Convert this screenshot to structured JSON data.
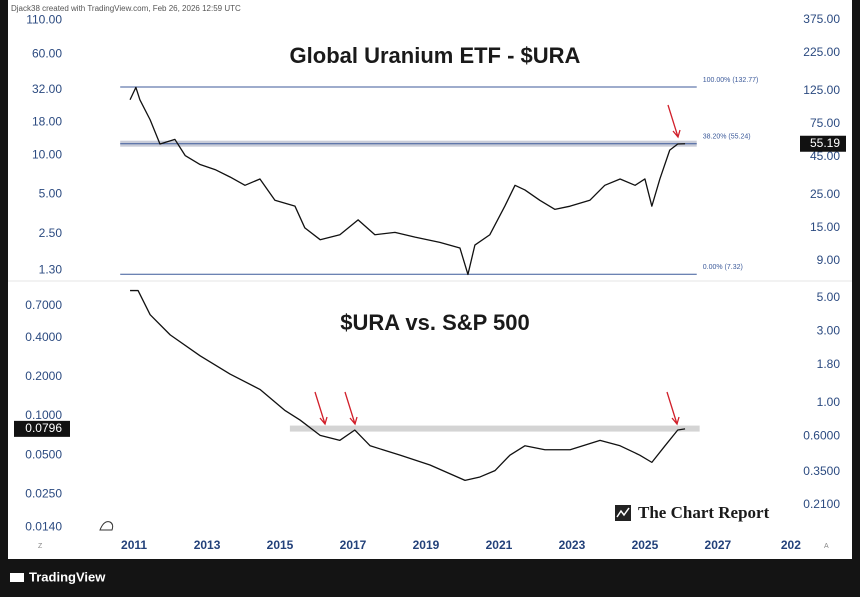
{
  "header": "Djack38 created with TradingView.com, Feb 26, 2026 12:59 UTC",
  "footer": "TradingView",
  "watermark": "The Chart Report",
  "axis_buttons": [
    "Z",
    "A"
  ],
  "chart_data": [
    {
      "type": "line",
      "title": "Global Uranium ETF - $URA",
      "log_scale": true,
      "xlim": [
        2007.6,
        2029.25
      ],
      "x": [
        2010.89,
        2011.05,
        2011.16,
        2011.44,
        2011.71,
        2012.12,
        2012.4,
        2012.81,
        2013.22,
        2013.63,
        2014.04,
        2014.45,
        2014.86,
        2015.41,
        2015.68,
        2016.1,
        2016.64,
        2017.14,
        2017.6,
        2018.15,
        2018.7,
        2019.38,
        2019.93,
        2020.15,
        2020.34,
        2020.75,
        2021.16,
        2021.44,
        2021.71,
        2022.12,
        2022.53,
        2022.95,
        2023.49,
        2023.9,
        2024.32,
        2024.73,
        2025.0,
        2025.19,
        2025.41,
        2025.68,
        2025.9,
        2026.1
      ],
      "series": [
        {
          "color": "#111111",
          "axis": "y2",
          "values": [
            109,
            132,
            109,
            80,
            55,
            59,
            46,
            40,
            37,
            33,
            29,
            32,
            23,
            21,
            15,
            12.5,
            13.5,
            17,
            13.5,
            14,
            13,
            12,
            11,
            7.3,
            11.5,
            13.5,
            21,
            29,
            27,
            23,
            20,
            21,
            23,
            29,
            32,
            29,
            32,
            21,
            32,
            50,
            55,
            55.19
          ]
        }
      ],
      "ylim": [
        1.1,
        127
      ],
      "yticks": [
        {
          "value": 110,
          "label": "110.00"
        },
        {
          "value": 60,
          "label": "60.00"
        },
        {
          "value": 32,
          "label": "32.00"
        },
        {
          "value": 18,
          "label": "18.00"
        },
        {
          "value": 10,
          "label": "10.00"
        },
        {
          "value": 5,
          "label": "5.00"
        },
        {
          "value": 2.5,
          "label": "2.50"
        },
        {
          "value": 1.3,
          "label": "1.30"
        }
      ],
      "y2lim": [
        6.7,
        424
      ],
      "y2ticks": [
        {
          "value": 375,
          "label": "375.00"
        },
        {
          "value": 225,
          "label": "225.00"
        },
        {
          "value": 125,
          "label": "125.00"
        },
        {
          "value": 75,
          "label": "75.00"
        },
        {
          "value": 45,
          "label": "45.00"
        },
        {
          "value": 25,
          "label": "25.00"
        },
        {
          "value": 15,
          "label": "15.00"
        },
        {
          "value": 9,
          "label": "9.00"
        }
      ],
      "fib_x_range": [
        2010.62,
        2026.42
      ],
      "fib_levels": [
        {
          "value": 132.77,
          "label": "100.00% (132.77)",
          "highlight": false
        },
        {
          "value": 55.24,
          "label": "38.20% (55.24)",
          "highlight": true
        },
        {
          "value": 7.32,
          "label": "0.00% (7.32)",
          "highlight": false
        }
      ],
      "last_value": 55.19,
      "last_value_axis": "y2"
    },
    {
      "type": "line",
      "title": "$URA vs. S&P 500",
      "log_scale": true,
      "xlim": [
        2007.6,
        2029.25
      ],
      "xticks": [
        2011,
        2013,
        2015,
        2017,
        2019,
        2021,
        2023,
        2025,
        2027,
        {
          "value": 2029,
          "label": "202"
        }
      ],
      "x": [
        2010.89,
        2011.11,
        2011.44,
        2011.99,
        2012.81,
        2013.63,
        2014.45,
        2015.14,
        2015.55,
        2016.1,
        2016.64,
        2017.05,
        2017.47,
        2018.29,
        2019.11,
        2020.07,
        2020.48,
        2020.89,
        2021.3,
        2021.71,
        2022.26,
        2022.95,
        2023.77,
        2024.32,
        2024.86,
        2025.19,
        2025.55,
        2025.9,
        2026.1
      ],
      "series": [
        {
          "color": "#111111",
          "axis": "y",
          "values": [
            0.92,
            0.92,
            0.6,
            0.42,
            0.29,
            0.21,
            0.16,
            0.11,
            0.093,
            0.071,
            0.065,
            0.078,
            0.059,
            0.05,
            0.042,
            0.032,
            0.034,
            0.038,
            0.05,
            0.059,
            0.055,
            0.055,
            0.065,
            0.059,
            0.05,
            0.044,
            0.059,
            0.078,
            0.0796
          ]
        }
      ],
      "ylim": [
        0.0133,
        1.07
      ],
      "yticks": [
        {
          "value": 0.7,
          "label": "0.7000"
        },
        {
          "value": 0.4,
          "label": "0.4000"
        },
        {
          "value": 0.2,
          "label": "0.2000"
        },
        {
          "value": 0.1,
          "label": "0.1000"
        },
        {
          "value": 0.05,
          "label": "0.0500"
        },
        {
          "value": 0.025,
          "label": "0.0250"
        },
        {
          "value": 0.014,
          "label": "0.0140"
        }
      ],
      "y2lim": [
        0.143,
        6.39
      ],
      "y2ticks": [
        {
          "value": 5,
          "label": "5.00"
        },
        {
          "value": 3,
          "label": "3.00"
        },
        {
          "value": 1.8,
          "label": "1.80"
        },
        {
          "value": 1,
          "label": "1.00"
        },
        {
          "value": 0.6,
          "label": "0.6000"
        },
        {
          "value": 0.35,
          "label": "0.3500"
        },
        {
          "value": 0.21,
          "label": "0.2100"
        }
      ],
      "band": {
        "value": 0.08,
        "x_range": [
          2015.27,
          2026.5
        ]
      },
      "last_value": 0.0796,
      "last_value_axis": "y"
    }
  ]
}
